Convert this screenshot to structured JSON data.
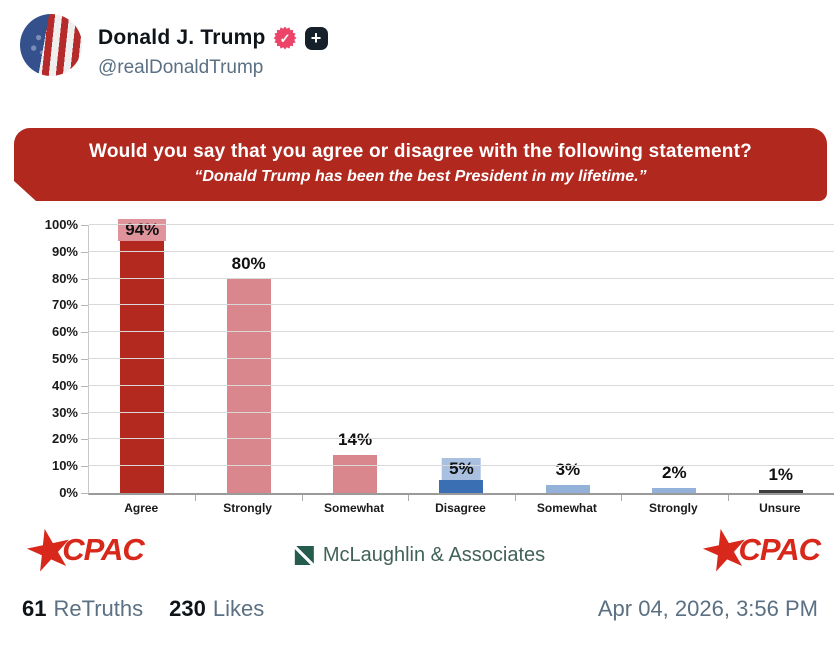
{
  "header": {
    "display_name": "Donald J. Trump",
    "handle": "@realDonaldTrump",
    "verified_check": "✓",
    "plus_badge": "+"
  },
  "banner": {
    "question": "Would you say that you agree or disagree with the following statement?",
    "quote": "“Donald Trump has been the best President in my lifetime.”",
    "bg_color": "#b1281f"
  },
  "chart_data": {
    "type": "bar",
    "title": "Would you say that you agree or disagree with the following statement?",
    "subtitle": "“Donald Trump has been the best President in my lifetime.”",
    "categories": [
      "Agree",
      "Strongly",
      "Somewhat",
      "Disagree",
      "Somewhat",
      "Strongly",
      "Unsure"
    ],
    "values": [
      94,
      80,
      14,
      5,
      3,
      2,
      1
    ],
    "value_labels": [
      "94%",
      "80%",
      "14%",
      "5%",
      "3%",
      "2%",
      "1%"
    ],
    "bar_colors": [
      "#b3281f",
      "#d9868d",
      "#d9868d",
      "#3a70b3",
      "#93b1d9",
      "#93b1d9",
      "#3d3d3d"
    ],
    "value_label_backgrounds": [
      "#df949c",
      "",
      "",
      "#a9c0e0",
      "",
      "",
      ""
    ],
    "yticks": [
      "0%",
      "10%",
      "20%",
      "30%",
      "40%",
      "50%",
      "60%",
      "70%",
      "80%",
      "90%",
      "100%"
    ],
    "ylim": [
      0,
      100
    ],
    "grid": true,
    "legend_position": "none",
    "gridline_color": "#d9d9d9"
  },
  "branding": {
    "cpac_label": "CPAC",
    "cpac_star": "★",
    "pollster": "McLaughlin & Associates",
    "cpac_color": "#d8281c",
    "pollster_color": "#426259"
  },
  "engagement": {
    "retruths_count": "61",
    "retruths_label": "ReTruths",
    "likes_count": "230",
    "likes_label": "Likes",
    "timestamp": "Apr 04, 2026, 3:56 PM"
  }
}
